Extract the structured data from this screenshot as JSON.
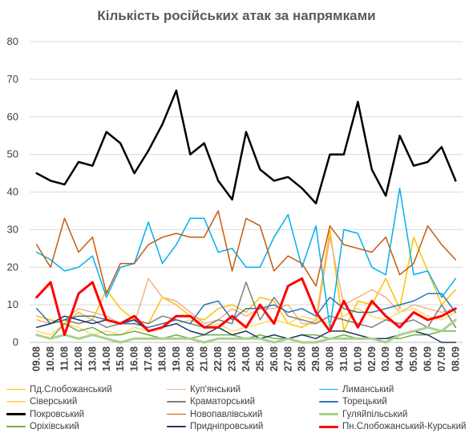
{
  "chart_data": {
    "type": "line",
    "title": "Кількість російських атак за напрямками",
    "xlabel": "",
    "ylabel": "",
    "ylim": [
      0,
      80
    ],
    "y_ticks": [
      0,
      10,
      20,
      30,
      40,
      50,
      60,
      70,
      80
    ],
    "grid": "horizontal",
    "legend_position": "bottom",
    "categories": [
      "09.08",
      "10.08",
      "11.08",
      "12.08",
      "13.08",
      "14.08",
      "15.08",
      "16.08",
      "17.08",
      "18.08",
      "19.08",
      "20.08",
      "21.08",
      "22.08",
      "23.08",
      "24.08",
      "25.08",
      "26.08",
      "27.08",
      "28.08",
      "29.08",
      "30.08",
      "31.08",
      "01.09",
      "02.09",
      "03.09",
      "04.09",
      "05.09",
      "06.09",
      "07.09",
      "08.09"
    ],
    "series": [
      {
        "name": "Пд.Слобожанський",
        "color": "#ffc000",
        "width": 1.5,
        "values": [
          7,
          6,
          5,
          8,
          6,
          14,
          9,
          6,
          5,
          12,
          10,
          7,
          6,
          9,
          10,
          8,
          12,
          11,
          5,
          4,
          6,
          30,
          3,
          11,
          10,
          17,
          9,
          28,
          19,
          10,
          14
        ]
      },
      {
        "name": "Куп'янський",
        "color": "#f4b183",
        "width": 1.5,
        "values": [
          6,
          5,
          6,
          9,
          8,
          7,
          5,
          5,
          17,
          12,
          11,
          8,
          5,
          6,
          9,
          7,
          9,
          9,
          10,
          5,
          5,
          28,
          10,
          12,
          14,
          12,
          8,
          10,
          9,
          8,
          9
        ]
      },
      {
        "name": "Лиманський",
        "color": "#00b0f0",
        "width": 1.5,
        "values": [
          24,
          22,
          19,
          20,
          23,
          12,
          20,
          21,
          32,
          21,
          26,
          33,
          33,
          24,
          25,
          20,
          20,
          28,
          34,
          20,
          31,
          4,
          30,
          29,
          20,
          18,
          41,
          18,
          19,
          12,
          17
        ]
      },
      {
        "name": "Сіверський",
        "color": "#ffd966",
        "width": 1.5,
        "values": [
          3,
          2,
          5,
          4,
          2,
          3,
          2,
          4,
          3,
          4,
          5,
          6,
          4,
          5,
          3,
          4,
          5,
          6,
          5,
          7,
          6,
          5,
          7,
          9,
          7,
          6,
          8,
          9,
          7,
          6,
          8
        ]
      },
      {
        "name": "Краматорський",
        "color": "#7f7f7f",
        "width": 1.5,
        "values": [
          4,
          5,
          6,
          5,
          6,
          4,
          5,
          6,
          5,
          7,
          6,
          5,
          4,
          6,
          5,
          16,
          6,
          12,
          7,
          6,
          5,
          7,
          6,
          5,
          4,
          6,
          5,
          6,
          4,
          10,
          4
        ]
      },
      {
        "name": "Торецький",
        "color": "#2e75b6",
        "width": 1.5,
        "values": [
          9,
          5,
          6,
          7,
          7,
          6,
          5,
          5,
          4,
          5,
          6,
          5,
          10,
          11,
          6,
          9,
          9,
          10,
          8,
          9,
          7,
          12,
          9,
          8,
          8,
          9,
          10,
          11,
          13,
          13,
          8
        ]
      },
      {
        "name": "Покровський",
        "color": "#000000",
        "width": 2.5,
        "values": [
          45,
          43,
          42,
          48,
          47,
          56,
          53,
          45,
          51,
          58,
          67,
          50,
          53,
          43,
          38,
          56,
          46,
          43,
          44,
          41,
          37,
          50,
          50,
          64,
          46,
          39,
          55,
          47,
          48,
          52,
          43
        ]
      },
      {
        "name": "Новопавлівський",
        "color": "#c55a11",
        "width": 1.5,
        "values": [
          26,
          20,
          33,
          24,
          28,
          13,
          21,
          21,
          26,
          28,
          29,
          28,
          28,
          35,
          19,
          33,
          31,
          19,
          23,
          21,
          15,
          31,
          26,
          25,
          24,
          28,
          18,
          21,
          31,
          26,
          22
        ]
      },
      {
        "name": "Гуляйпільський",
        "color": "#a9d18e",
        "width": 3,
        "values": [
          2,
          1,
          2,
          1,
          2,
          1,
          0,
          1,
          1,
          1,
          1,
          1,
          0,
          1,
          1,
          1,
          1,
          0,
          1,
          0,
          0,
          1,
          1,
          1,
          1,
          0,
          2,
          3,
          4,
          3,
          6
        ]
      },
      {
        "name": "Оріхівський",
        "color": "#70ad47",
        "width": 1.5,
        "values": [
          2,
          1,
          5,
          3,
          4,
          2,
          2,
          3,
          2,
          1,
          2,
          1,
          2,
          2,
          2,
          1,
          2,
          1,
          1,
          2,
          2,
          1,
          2,
          1,
          1,
          1,
          1,
          2,
          2,
          3,
          3
        ]
      },
      {
        "name": "Придніпровський",
        "color": "#1f3864",
        "width": 1.5,
        "values": [
          4,
          5,
          7,
          6,
          5,
          6,
          5,
          6,
          3,
          4,
          5,
          3,
          2,
          4,
          2,
          3,
          1,
          2,
          1,
          2,
          1,
          3,
          3,
          2,
          1,
          1,
          2,
          3,
          2,
          0,
          0
        ]
      },
      {
        "name": "Пн.Слобожанський-Курський",
        "color": "#ff0000",
        "width": 3,
        "values": [
          12,
          16,
          2,
          13,
          16,
          6,
          5,
          7,
          3,
          4,
          7,
          7,
          4,
          4,
          7,
          4,
          10,
          5,
          15,
          17,
          8,
          3,
          11,
          4,
          11,
          7,
          4,
          8,
          6,
          7,
          9
        ]
      }
    ]
  }
}
